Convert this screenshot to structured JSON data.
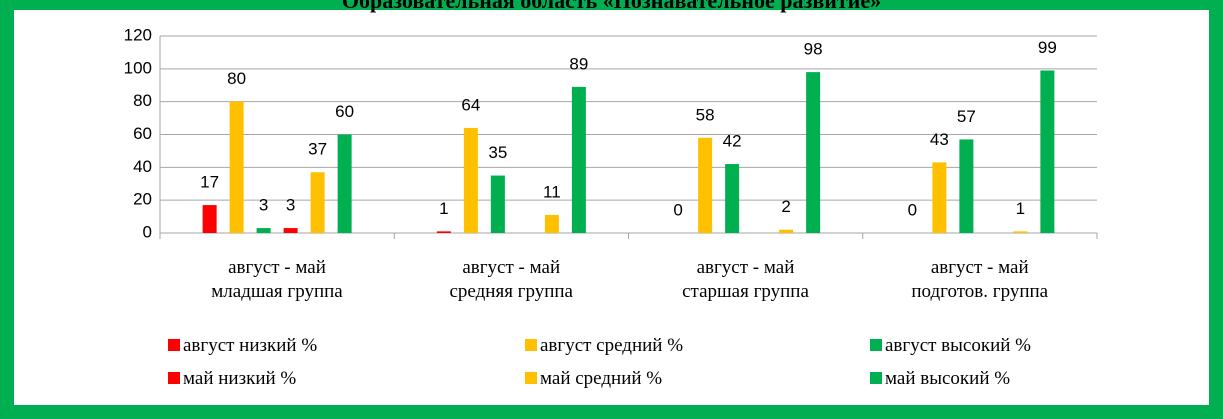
{
  "chart_data": {
    "type": "bar",
    "title": "Образовательная область «Познавательное развитие»",
    "categories": [
      "август - май\nмладшая группа",
      "август - май\nсредняя группа",
      "август - май\nстаршая группа",
      "август - май\nподготов. группа"
    ],
    "series": [
      {
        "name": "август низкий %",
        "color": "#ff0000",
        "values": [
          17,
          1,
          0,
          0
        ]
      },
      {
        "name": "август средний %",
        "color": "#ffc000",
        "values": [
          80,
          64,
          58,
          43
        ]
      },
      {
        "name": "август высокий %",
        "color": "#00b050",
        "values": [
          3,
          35,
          42,
          57
        ]
      },
      {
        "name": "май низкий %",
        "color": "#ff0000",
        "values": [
          3,
          null,
          null,
          null
        ]
      },
      {
        "name": "май средний %",
        "color": "#ffc000",
        "values": [
          37,
          11,
          2,
          1
        ]
      },
      {
        "name": "май высокий %",
        "color": "#00b050",
        "values": [
          60,
          89,
          98,
          99
        ]
      }
    ],
    "ylim": [
      0,
      120
    ],
    "yticks": [
      0,
      20,
      40,
      60,
      80,
      100,
      120
    ],
    "grid": true
  }
}
